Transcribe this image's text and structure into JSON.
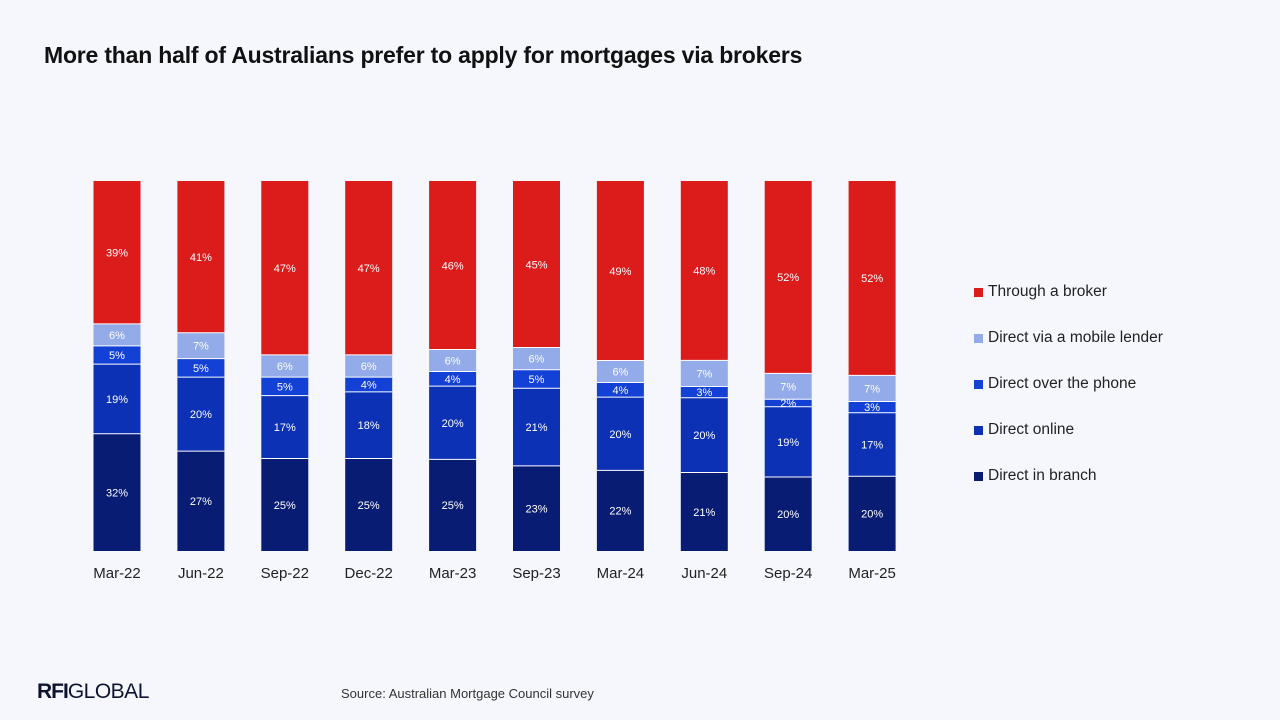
{
  "title": "More than half of Australians prefer to apply for mortgages via brokers",
  "source": "Source: Australian Mortgage Council survey",
  "logo": {
    "strong": "RFI",
    "rest": "GLOBAL"
  },
  "colors": {
    "background": "#f5f7fc",
    "broker": "#dc1b1b",
    "mobile": "#93abe8",
    "phone": "#1341d6",
    "online": "#0c31b5",
    "branch": "#091c74"
  },
  "chart_data": {
    "type": "bar",
    "stacked": true,
    "percent_scale": true,
    "categories": [
      "Mar-22",
      "Jun-22",
      "Sep-22",
      "Dec-22",
      "Mar-23",
      "Sep-23",
      "Mar-24",
      "Jun-24",
      "Sep-24",
      "Mar-25"
    ],
    "series": [
      {
        "name": "Direct in branch",
        "color": "#091c74",
        "values": [
          32,
          27,
          25,
          25,
          25,
          23,
          22,
          21,
          20,
          20
        ]
      },
      {
        "name": "Direct online",
        "color": "#0c31b5",
        "values": [
          19,
          20,
          17,
          18,
          20,
          21,
          20,
          20,
          19,
          17
        ]
      },
      {
        "name": "Direct over the phone",
        "color": "#1341d6",
        "values": [
          5,
          5,
          5,
          4,
          4,
          5,
          4,
          3,
          2,
          3
        ]
      },
      {
        "name": "Direct via a mobile lender",
        "color": "#93abe8",
        "values": [
          6,
          7,
          6,
          6,
          6,
          6,
          6,
          7,
          7,
          7
        ]
      },
      {
        "name": "Through a broker",
        "color": "#dc1b1b",
        "values": [
          39,
          41,
          47,
          47,
          46,
          45,
          49,
          48,
          52,
          52
        ]
      }
    ],
    "legend_order": [
      "Through a broker",
      "Direct via a mobile lender",
      "Direct over the phone",
      "Direct online",
      "Direct in branch"
    ],
    "legend_position": "right",
    "data_labels": true,
    "grid": false
  }
}
